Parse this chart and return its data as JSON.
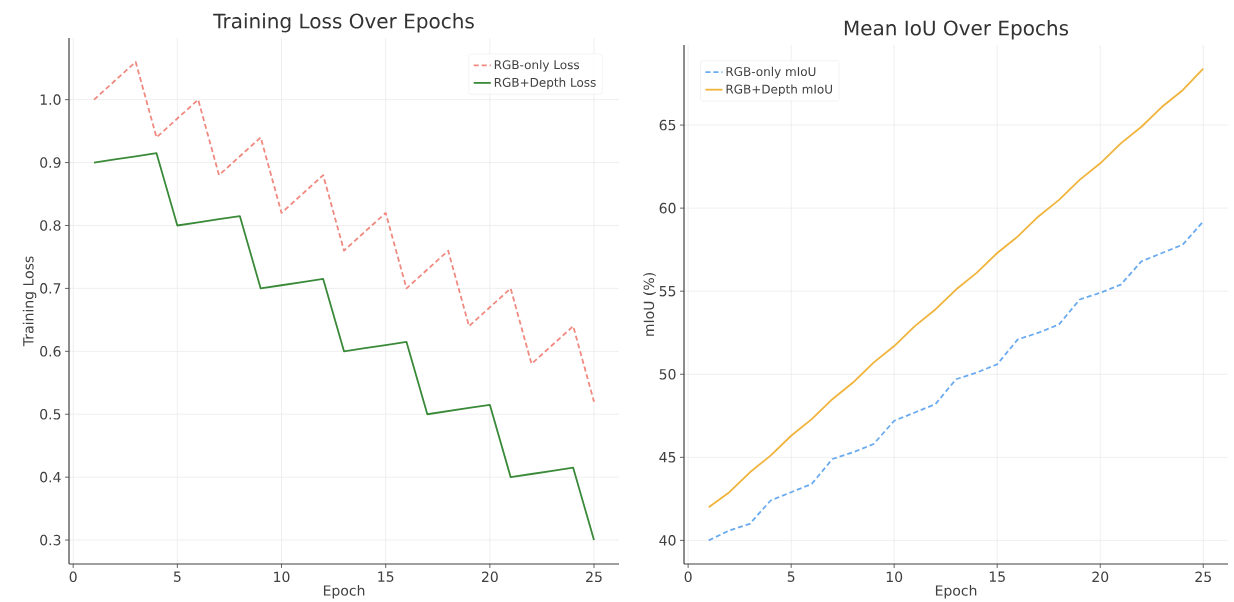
{
  "chart_data": [
    {
      "type": "line",
      "title": "Training Loss Over Epochs",
      "xlabel": "Epoch",
      "ylabel": "Training Loss",
      "x": [
        1,
        2,
        3,
        4,
        5,
        6,
        7,
        8,
        9,
        10,
        11,
        12,
        13,
        14,
        15,
        16,
        17,
        18,
        19,
        20,
        21,
        22,
        23,
        24,
        25
      ],
      "series": [
        {
          "name": "RGB-only Loss",
          "color": "#f08a80",
          "line_style": "dashed",
          "values": [
            1.0,
            1.03,
            1.06,
            0.94,
            0.97,
            1.0,
            0.88,
            0.91,
            0.94,
            0.82,
            0.85,
            0.88,
            0.76,
            0.79,
            0.82,
            0.7,
            0.73,
            0.76,
            0.64,
            0.67,
            0.7,
            0.58,
            0.61,
            0.64,
            0.52
          ]
        },
        {
          "name": "RGB+Depth Loss",
          "color": "#3a8a3a",
          "line_style": "solid",
          "values": [
            0.9,
            0.905,
            0.91,
            0.915,
            0.8,
            0.805,
            0.81,
            0.815,
            0.7,
            0.705,
            0.71,
            0.715,
            0.6,
            0.605,
            0.61,
            0.615,
            0.5,
            0.505,
            0.51,
            0.515,
            0.4,
            0.405,
            0.41,
            0.415,
            0.3
          ]
        }
      ],
      "xlim": [
        -0.2,
        26.2
      ],
      "ylim": [
        0.262,
        1.098
      ],
      "xticks": [
        0,
        5,
        10,
        15,
        20,
        25
      ],
      "yticks": [
        {
          "value": 0.3,
          "label": "0.3"
        },
        {
          "value": 0.4,
          "label": "0.4"
        },
        {
          "value": 0.5,
          "label": "0.5"
        },
        {
          "value": 0.6,
          "label": "0.6"
        },
        {
          "value": 0.7,
          "label": "0.7"
        },
        {
          "value": 0.8,
          "label": "0.8"
        },
        {
          "value": 0.9,
          "label": "0.9"
        },
        {
          "value": 1.0,
          "label": "1.0"
        }
      ],
      "grid": true,
      "legend": "top right",
      "marker": "none"
    },
    {
      "type": "line",
      "title": "Mean IoU Over Epochs",
      "xlabel": "Epoch",
      "ylabel": "mIoU (%)",
      "x": [
        1,
        2,
        3,
        4,
        5,
        6,
        7,
        8,
        9,
        10,
        11,
        12,
        13,
        14,
        15,
        16,
        17,
        18,
        19,
        20,
        21,
        22,
        23,
        24,
        25
      ],
      "series": [
        {
          "name": "RGB-only mIoU",
          "color": "#6aaaf0",
          "line_style": "dashed",
          "values": [
            40.0,
            40.6,
            41.0,
            42.4,
            42.9,
            43.4,
            44.9,
            45.3,
            45.8,
            47.2,
            47.7,
            48.2,
            49.7,
            50.1,
            50.6,
            52.1,
            52.5,
            53.0,
            54.5,
            54.9,
            55.4,
            56.8,
            57.3,
            57.8,
            59.2
          ]
        },
        {
          "name": "RGB+Depth mIoU",
          "color": "#f0b43c",
          "line_style": "solid",
          "values": [
            42.0,
            42.9,
            44.1,
            45.1,
            46.3,
            47.3,
            48.5,
            49.5,
            50.7,
            51.7,
            52.9,
            53.9,
            55.1,
            56.1,
            57.3,
            58.3,
            59.5,
            60.5,
            61.7,
            62.7,
            63.9,
            64.9,
            66.1,
            67.1,
            68.4
          ]
        }
      ],
      "xlim": [
        -0.2,
        26.2
      ],
      "ylim": [
        38.58,
        69.82
      ],
      "xticks": [
        0,
        5,
        10,
        15,
        20,
        25
      ],
      "yticks": [
        40,
        45,
        50,
        55,
        60,
        65
      ],
      "grid": true,
      "legend": "top left",
      "marker": "none"
    }
  ]
}
